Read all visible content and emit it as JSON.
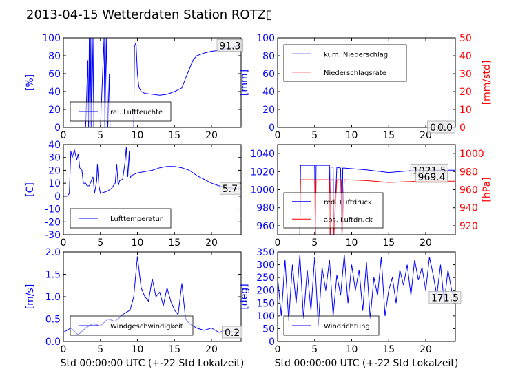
{
  "page_title": "2013-04-15 Wetterdaten Station ROTZ",
  "title_glyph": "▯",
  "chart_data": [
    {
      "id": "humidity",
      "type": "line",
      "ylabel": "[%]",
      "ylabel_color": "#0000ff",
      "xlim": [
        0,
        24
      ],
      "ylim": [
        0,
        100
      ],
      "xticks": [
        0,
        5,
        10,
        15,
        20
      ],
      "yticks": [
        0,
        20,
        40,
        60,
        80,
        100
      ],
      "ytick_color": "#0000ff",
      "grid": false,
      "legend_position": "lower-left",
      "series": [
        {
          "name": "rel. Luftfeuchte",
          "color": "#0000ff",
          "x": [
            0,
            1,
            2,
            3,
            3.3,
            3.4,
            3.5,
            3.6,
            3.7,
            3.8,
            4.0,
            4.1,
            4.2,
            5.0,
            5.5,
            5.6,
            5.8,
            6.0,
            6.2,
            6.3,
            6.5,
            6.6,
            9.5,
            9.6,
            9.8,
            10,
            10.2,
            10.5,
            11,
            12,
            13,
            14,
            15,
            16,
            16.5,
            17,
            17.5,
            18,
            19,
            20,
            21,
            22,
            23,
            24
          ],
          "y": [
            0,
            0,
            0,
            0,
            75,
            0,
            100,
            0,
            100,
            0,
            100,
            0,
            0,
            0,
            100,
            0,
            100,
            0,
            60,
            0,
            0,
            0,
            0,
            90,
            95,
            60,
            45,
            40,
            38,
            37,
            36,
            37,
            40,
            44,
            55,
            65,
            75,
            80,
            83,
            85,
            86,
            88,
            90,
            91.3
          ]
        }
      ],
      "annotations": [
        {
          "x": 22.5,
          "y": 91.3,
          "text": "91.3"
        }
      ]
    },
    {
      "id": "precipitation",
      "type": "line",
      "ylabel": "[mm]",
      "ylabel_color": "#0000ff",
      "ylabel_right": "[mm/std]",
      "ylabel_right_color": "#ff0000",
      "xlim": [
        0,
        24
      ],
      "ylim": [
        0,
        100
      ],
      "ylim_right": [
        0,
        50
      ],
      "xticks": [
        0,
        5,
        10,
        15,
        20
      ],
      "yticks": [
        0,
        20,
        40,
        60,
        80,
        100
      ],
      "yticks_right": [
        0,
        10,
        20,
        30,
        40,
        50
      ],
      "ytick_color": "#0000ff",
      "ytick_right_color": "#ff0000",
      "grid": false,
      "legend_position": "upper-left",
      "series": [
        {
          "name": "kum. Niederschlag",
          "color": "#0000ff",
          "axis": "left",
          "x": [
            0,
            24
          ],
          "y": [
            0,
            0
          ]
        },
        {
          "name": "Niederschlagsrate",
          "color": "#ff0000",
          "axis": "right",
          "x": [
            0,
            24
          ],
          "y": [
            0,
            0
          ]
        }
      ],
      "annotations": [
        {
          "x": 21.6,
          "y": 0,
          "text": "0.0"
        },
        {
          "x": 22.6,
          "y": 0,
          "text": "0.0"
        }
      ]
    },
    {
      "id": "temperature",
      "type": "line",
      "ylabel": "[C]",
      "ylabel_color": "#0000ff",
      "xlim": [
        0,
        24
      ],
      "ylim": [
        -30,
        40
      ],
      "xticks": [
        0,
        5,
        10,
        15,
        20
      ],
      "yticks": [
        -30,
        -20,
        -10,
        0,
        10,
        20,
        30,
        40
      ],
      "ytick_color": "#0000ff",
      "grid": false,
      "legend_position": "lower-left",
      "series": [
        {
          "name": "Lufttemperatur",
          "color": "#0000ff",
          "x": [
            0,
            0.5,
            0.8,
            1.0,
            1.2,
            1.5,
            1.8,
            2.0,
            2.2,
            2.5,
            2.7,
            3.0,
            3.2,
            3.5,
            4.0,
            4.2,
            4.5,
            4.6,
            4.8,
            5.0,
            6.0,
            6.5,
            7.0,
            7.2,
            7.4,
            7.6,
            8.0,
            8.3,
            8.5,
            8.7,
            8.9,
            9.0,
            9.2,
            10,
            11,
            12,
            13,
            14,
            15,
            16,
            17,
            18,
            19,
            20,
            21,
            22,
            23,
            24
          ],
          "y": [
            0,
            0,
            2,
            35,
            30,
            36,
            28,
            33,
            22,
            20,
            10,
            10,
            8,
            8,
            15,
            2,
            12,
            25,
            8,
            2,
            4,
            6,
            10,
            25,
            8,
            12,
            13,
            25,
            38,
            15,
            35,
            14,
            16,
            18,
            19,
            20,
            22,
            23,
            23,
            22,
            20,
            16,
            13,
            10,
            8,
            7,
            6,
            5.7
          ]
        }
      ],
      "annotations": [
        {
          "x": 22.5,
          "y": 5.7,
          "text": "5.7"
        }
      ]
    },
    {
      "id": "pressure",
      "type": "line",
      "ylabel": "",
      "ylabel_right": "[hPa]",
      "ylabel_right_color": "#ff0000",
      "xlim": [
        0,
        24
      ],
      "ylim": [
        950,
        1050
      ],
      "ylim_right": [
        910,
        1010
      ],
      "xticks": [
        0,
        5,
        10,
        15,
        20
      ],
      "yticks": [
        960,
        980,
        1000,
        1020,
        1040
      ],
      "yticks_right": [
        920,
        940,
        960,
        980,
        1000
      ],
      "ytick_color": "#0000ff",
      "ytick_right_color": "#ff0000",
      "grid": false,
      "legend_position": "lower-left",
      "series": [
        {
          "name": "red. Luftdruck",
          "color": "#0000ff",
          "axis": "left",
          "x": [
            3.0,
            3.1,
            3.2,
            3.3,
            5.0,
            5.1,
            5.2,
            5.3,
            7.0,
            7.1,
            7.2,
            7.5,
            7.6,
            8.0,
            8.5,
            8.7,
            8.8,
            9.0,
            12,
            15,
            18,
            21,
            24
          ],
          "y": [
            950,
            1027,
            1027,
            1027,
            1027,
            950,
            1027,
            1027,
            1027,
            950,
            1025,
            1025,
            950,
            1025,
            1024,
            950,
            1024,
            1024,
            1022,
            1019,
            1021,
            1021.5,
            1021.5
          ]
        },
        {
          "name": "abs. Luftdruck",
          "color": "#ff0000",
          "axis": "right",
          "x": [
            3.0,
            3.1,
            3.2,
            5.0,
            5.1,
            5.2,
            5.4,
            7.0,
            7.1,
            7.2,
            7.5,
            7.6,
            8.0,
            8.6,
            8.7,
            9.0,
            12,
            15,
            18,
            21,
            24
          ],
          "y": [
            910,
            971,
            971,
            971,
            910,
            971,
            971,
            971,
            910,
            971,
            971,
            910,
            971,
            971,
            910,
            971,
            970,
            968,
            969,
            969.4,
            969.4
          ]
        }
      ],
      "annotations": [
        {
          "x": 20.5,
          "y": 1021.5,
          "text": "1021.5"
        },
        {
          "x": 20.8,
          "y": 1011,
          "text": "969.4"
        }
      ]
    },
    {
      "id": "wind_speed",
      "type": "line",
      "ylabel": "[m/s]",
      "ylabel_color": "#0000ff",
      "xlim": [
        0,
        24
      ],
      "ylim": [
        0,
        2.0
      ],
      "xticks": [
        0,
        5,
        10,
        15,
        20
      ],
      "ytick_labels": [
        "0.0",
        "0.5",
        "1.0",
        "1.5",
        "2.0"
      ],
      "yticks": [
        0,
        0.5,
        1.0,
        1.5,
        2.0
      ],
      "ytick_color": "#0000ff",
      "xlabel": "Std 00:00:00 UTC (+-22 Std Lokalzeit)",
      "grid": false,
      "legend_position": "lower-left",
      "series": [
        {
          "name": "Windgeschwindigkeit",
          "color": "#0000ff",
          "x": [
            0,
            1,
            2,
            3,
            4,
            5,
            6,
            7,
            8,
            9,
            9.5,
            10,
            10.5,
            11,
            11.5,
            12,
            12.5,
            13,
            13.5,
            14,
            14.5,
            15,
            15.5,
            16,
            16.5,
            17,
            18,
            19,
            20,
            21,
            22,
            23,
            24
          ],
          "y": [
            0.2,
            0.3,
            0.15,
            0.3,
            0.4,
            0.35,
            0.5,
            0.45,
            0.6,
            0.7,
            1.0,
            1.9,
            1.2,
            1.0,
            0.9,
            1.4,
            1.0,
            1.1,
            0.8,
            1.2,
            0.9,
            0.7,
            0.6,
            1.3,
            0.5,
            0.4,
            0.3,
            0.25,
            0.3,
            0.2,
            0.25,
            0.2,
            0.2
          ]
        }
      ],
      "annotations": [
        {
          "x": 22.8,
          "y": 0.2,
          "text": "0.2"
        }
      ]
    },
    {
      "id": "wind_direction",
      "type": "line",
      "ylabel": "[deg]",
      "ylabel_color": "#0000ff",
      "xlim": [
        0,
        24
      ],
      "ylim": [
        0,
        350
      ],
      "xticks": [
        0,
        5,
        10,
        15,
        20
      ],
      "yticks": [
        0,
        50,
        100,
        150,
        200,
        250,
        300,
        350
      ],
      "ytick_color": "#0000ff",
      "xlabel": "Std 00:00:00 UTC (+-22 Std Lokalzeit)",
      "grid": false,
      "legend_position": "lower-left",
      "series": [
        {
          "name": "Windrichtung",
          "color": "#0000ff",
          "x": [
            0,
            0.5,
            1,
            1.5,
            2,
            2.5,
            3,
            3.5,
            4,
            4.5,
            5,
            5.5,
            6,
            6.5,
            7,
            7.5,
            8,
            8.5,
            9,
            9.5,
            10,
            10.5,
            11,
            11.5,
            12,
            12.5,
            13,
            13.5,
            14,
            14.5,
            15,
            15.5,
            16,
            16.5,
            17,
            17.5,
            18,
            18.5,
            19,
            19.5,
            20,
            20.5,
            21,
            21.5,
            22,
            22.5,
            23,
            23.5,
            24
          ],
          "y": [
            250,
            100,
            320,
            80,
            300,
            150,
            340,
            90,
            280,
            120,
            330,
            60,
            290,
            200,
            320,
            100,
            260,
            180,
            340,
            150,
            300,
            200,
            280,
            120,
            310,
            90,
            250,
            180,
            330,
            100,
            200,
            250,
            150,
            280,
            220,
            300,
            180,
            320,
            240,
            290,
            200,
            330,
            260,
            180,
            300,
            150,
            280,
            200,
            171.5
          ]
        }
      ],
      "annotations": [
        {
          "x": 22.6,
          "y": 171.5,
          "text": "171.5"
        }
      ]
    }
  ]
}
